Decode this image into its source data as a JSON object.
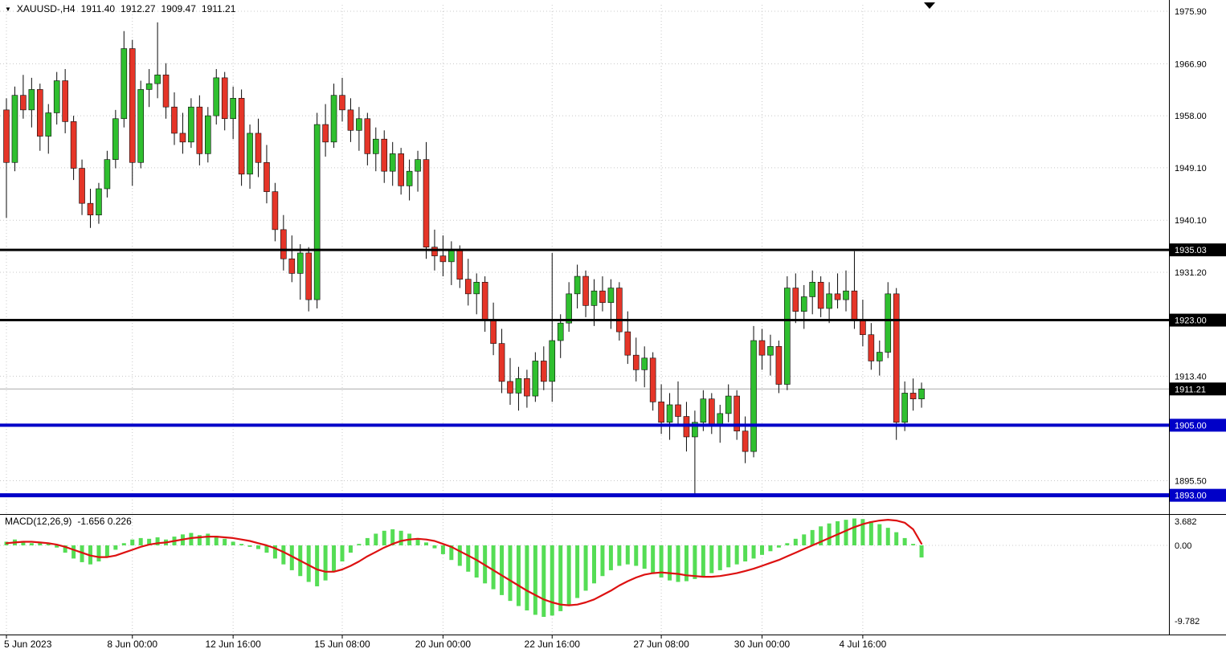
{
  "header": {
    "symbol_period": "XAUUSD-,H4",
    "open": "1911.40",
    "high": "1912.27",
    "low": "1909.47",
    "close": "1911.21"
  },
  "macd_header": {
    "title": "MACD(12,26,9)",
    "values": "-1.656 0.226"
  },
  "colors": {
    "bull": "#2fbf2f",
    "bear": "#e53528",
    "outline": "#0a0a0a",
    "macd_hist": "#55dd55",
    "macd_signal": "#dd1111",
    "grid": "#c8c8c8",
    "current_line": "#aaaaaa",
    "level_black": "#000000",
    "level_blue": "#0000C8",
    "badge_text": "#ffffff",
    "axis_text": "#000000"
  },
  "chart_data": {
    "type": "candlestick",
    "symbol": "XAUUSD-",
    "timeframe": "H4",
    "quote": {
      "open": 1911.4,
      "high": 1912.27,
      "low": 1909.47,
      "close": 1911.21
    },
    "price_axis": {
      "range_top": 1977.0,
      "range_bottom": 1890.2,
      "ticks": [
        {
          "label": "1975.90",
          "price": 1975.9
        },
        {
          "label": "1966.90",
          "price": 1966.9
        },
        {
          "label": "1958.00",
          "price": 1958.0
        },
        {
          "label": "1949.10",
          "price": 1949.1
        },
        {
          "label": "1940.10",
          "price": 1940.1
        },
        {
          "label": "1931.20",
          "price": 1931.2
        },
        {
          "label": "1913.40",
          "price": 1913.4
        },
        {
          "label": "1895.50",
          "price": 1895.5
        }
      ]
    },
    "time_axis": {
      "labels": [
        {
          "text": "5 Jun 2023",
          "i": 0
        },
        {
          "text": "8 Jun 00:00",
          "i": 15
        },
        {
          "text": "12 Jun 16:00",
          "i": 27
        },
        {
          "text": "15 Jun 08:00",
          "i": 40
        },
        {
          "text": "20 Jun 00:00",
          "i": 52
        },
        {
          "text": "22 Jun 16:00",
          "i": 65
        },
        {
          "text": "27 Jun 08:00",
          "i": 78
        },
        {
          "text": "30 Jun 00:00",
          "i": 90
        },
        {
          "text": "4 Jul 16:00",
          "i": 102
        }
      ]
    },
    "levels": [
      {
        "price": 1935.03,
        "label": "1935.03",
        "color": "#000000",
        "width": 3
      },
      {
        "price": 1923.0,
        "label": "1923.00",
        "color": "#000000",
        "width": 3
      },
      {
        "price": 1905.0,
        "label": "1905.00",
        "color": "#0000C8",
        "width": 4
      },
      {
        "price": 1893.0,
        "label": "1893.00",
        "color": "#0000C8",
        "width": 5
      }
    ],
    "current_price": {
      "price": 1911.21,
      "label": "1911.21"
    },
    "candles": [
      [
        1959,
        1961,
        1940.5,
        1950
      ],
      [
        1950,
        1963,
        1948.5,
        1961.5
      ],
      [
        1961.5,
        1965,
        1957.5,
        1959
      ],
      [
        1959,
        1964.5,
        1956,
        1962.5
      ],
      [
        1962.5,
        1963.5,
        1952,
        1954.5
      ],
      [
        1954.5,
        1960,
        1951.5,
        1958.5
      ],
      [
        1958.5,
        1965.5,
        1956.5,
        1964
      ],
      [
        1964,
        1966,
        1955,
        1957
      ],
      [
        1957,
        1958,
        1947,
        1949
      ],
      [
        1949,
        1950.5,
        1941,
        1943
      ],
      [
        1943,
        1945.5,
        1938.8,
        1941
      ],
      [
        1941,
        1946.5,
        1939.5,
        1945.5
      ],
      [
        1945.5,
        1952,
        1944,
        1950.5
      ],
      [
        1950.5,
        1959,
        1949,
        1957.5
      ],
      [
        1957.5,
        1972.5,
        1956,
        1969.5
      ],
      [
        1969.5,
        1971,
        1946,
        1950
      ],
      [
        1950,
        1964,
        1949,
        1962.5
      ],
      [
        1962.5,
        1966,
        1959.5,
        1963.5
      ],
      [
        1963.5,
        1974,
        1961,
        1965
      ],
      [
        1965,
        1967,
        1957.5,
        1959.5
      ],
      [
        1959.5,
        1962,
        1953,
        1955
      ],
      [
        1955,
        1958.5,
        1951.5,
        1953.5
      ],
      [
        1953.5,
        1961,
        1952.5,
        1959.5
      ],
      [
        1959.5,
        1961.5,
        1949.5,
        1951.5
      ],
      [
        1951.5,
        1959.5,
        1950,
        1958
      ],
      [
        1958,
        1966,
        1956.5,
        1964.5
      ],
      [
        1964.5,
        1965.5,
        1955.5,
        1957.5
      ],
      [
        1957.5,
        1963,
        1954,
        1961
      ],
      [
        1961,
        1962.5,
        1946,
        1948
      ],
      [
        1948,
        1956.5,
        1945.5,
        1955
      ],
      [
        1955,
        1957.5,
        1947.5,
        1950
      ],
      [
        1950,
        1953,
        1943,
        1945
      ],
      [
        1945,
        1946.5,
        1936.5,
        1938.5
      ],
      [
        1938.5,
        1941,
        1931.5,
        1933.5
      ],
      [
        1933.5,
        1937.5,
        1929.5,
        1931
      ],
      [
        1931,
        1936,
        1926.5,
        1934.5
      ],
      [
        1934.5,
        1935.5,
        1924.5,
        1926.5
      ],
      [
        1926.5,
        1958.5,
        1925,
        1956.5
      ],
      [
        1956.5,
        1960,
        1951,
        1953.5
      ],
      [
        1953.5,
        1963.5,
        1952.5,
        1961.5
      ],
      [
        1961.5,
        1964.5,
        1957,
        1959
      ],
      [
        1959,
        1961,
        1953.5,
        1955.5
      ],
      [
        1955.5,
        1959.5,
        1952,
        1957.5
      ],
      [
        1957.5,
        1958.5,
        1949.5,
        1951.5
      ],
      [
        1951.5,
        1956,
        1948.5,
        1954
      ],
      [
        1954,
        1955.5,
        1946.5,
        1948.5
      ],
      [
        1948.5,
        1953.5,
        1946,
        1951.5
      ],
      [
        1951.5,
        1952.5,
        1944.5,
        1946
      ],
      [
        1946,
        1950.5,
        1943.5,
        1948.5
      ],
      [
        1948.5,
        1952,
        1945,
        1950.5
      ],
      [
        1950.5,
        1953.5,
        1933.5,
        1935.5
      ],
      [
        1935.5,
        1938.5,
        1931.5,
        1934
      ],
      [
        1934,
        1937.5,
        1930.5,
        1933
      ],
      [
        1933,
        1936.5,
        1929,
        1935
      ],
      [
        1935,
        1935.8,
        1928.5,
        1930
      ],
      [
        1930,
        1933.5,
        1925.5,
        1927.5
      ],
      [
        1927.5,
        1931,
        1924,
        1929.5
      ],
      [
        1929.5,
        1930.5,
        1921,
        1923
      ],
      [
        1923,
        1926,
        1917,
        1919
      ],
      [
        1919,
        1921.5,
        1910.5,
        1912.5
      ],
      [
        1912.5,
        1916.5,
        1908.5,
        1910.5
      ],
      [
        1910.5,
        1915,
        1907.5,
        1913
      ],
      [
        1913,
        1914.5,
        1908,
        1910
      ],
      [
        1910,
        1917.5,
        1909,
        1916
      ],
      [
        1916,
        1918.5,
        1911,
        1912.5
      ],
      [
        1912.5,
        1934.5,
        1909,
        1919.5
      ],
      [
        1919.5,
        1924,
        1916.5,
        1922.5
      ],
      [
        1922.5,
        1929.5,
        1921,
        1927.5
      ],
      [
        1927.5,
        1932.5,
        1925,
        1930.5
      ],
      [
        1930.5,
        1931.5,
        1923.5,
        1925.5
      ],
      [
        1925.5,
        1930,
        1922,
        1928
      ],
      [
        1928,
        1930.5,
        1924.5,
        1926
      ],
      [
        1926,
        1930,
        1921.5,
        1928.5
      ],
      [
        1928.5,
        1929.5,
        1919.5,
        1921
      ],
      [
        1921,
        1924.5,
        1915.5,
        1917
      ],
      [
        1917,
        1920,
        1912.5,
        1914.5
      ],
      [
        1914.5,
        1918.5,
        1911.5,
        1916.5
      ],
      [
        1916.5,
        1917.5,
        1907.5,
        1909
      ],
      [
        1909,
        1912,
        1903.5,
        1905.5
      ],
      [
        1905.5,
        1910.5,
        1902.5,
        1908.5
      ],
      [
        1908.5,
        1912.5,
        1905,
        1906.5
      ],
      [
        1906.5,
        1909,
        1900.5,
        1903
      ],
      [
        1903,
        1907.5,
        1893.2,
        1905.5
      ],
      [
        1905.5,
        1911,
        1904,
        1909.5
      ],
      [
        1909.5,
        1910.5,
        1903.5,
        1905
      ],
      [
        1905,
        1908.5,
        1902,
        1907
      ],
      [
        1907,
        1912,
        1905.5,
        1910
      ],
      [
        1910,
        1911,
        1902.5,
        1904
      ],
      [
        1904,
        1906.5,
        1898.5,
        1900.5
      ],
      [
        1900.5,
        1922,
        1899.5,
        1919.5
      ],
      [
        1919.5,
        1921.5,
        1914.5,
        1917
      ],
      [
        1917,
        1920.5,
        1913.5,
        1918.5
      ],
      [
        1918.5,
        1919.5,
        1910.5,
        1912
      ],
      [
        1912,
        1930.5,
        1911,
        1928.5
      ],
      [
        1928.5,
        1931,
        1922.5,
        1924.5
      ],
      [
        1924.5,
        1929,
        1921.5,
        1927
      ],
      [
        1927,
        1931.5,
        1924,
        1929.5
      ],
      [
        1929.5,
        1930.5,
        1923.5,
        1925
      ],
      [
        1925,
        1929.5,
        1922.5,
        1927.5
      ],
      [
        1927.5,
        1931,
        1925,
        1926.5
      ],
      [
        1926.5,
        1931.5,
        1924.5,
        1928
      ],
      [
        1928,
        1934.8,
        1921.5,
        1923
      ],
      [
        1923,
        1926.5,
        1918.5,
        1920.5
      ],
      [
        1920.5,
        1922.5,
        1914.5,
        1916
      ],
      [
        1916,
        1919.5,
        1913.5,
        1917.5
      ],
      [
        1917.5,
        1929.5,
        1916.5,
        1927.5
      ],
      [
        1927.5,
        1928.5,
        1902.5,
        1905.5
      ],
      [
        1905.5,
        1912.5,
        1904,
        1910.5
      ],
      [
        1910.5,
        1913,
        1907.5,
        1909.5
      ],
      [
        1909.5,
        1912.3,
        1908,
        1911.21
      ]
    ],
    "macd": {
      "title": "MACD(12,26,9)",
      "values_text": "-1.656 0.226",
      "macd_value": -1.656,
      "signal_value": 0.226,
      "axis": {
        "max_label": "3.682",
        "zero_label": "0.00",
        "min_label": "-9.782",
        "max": 3.682,
        "zero": 0.0,
        "min": -9.782
      },
      "hist": [
        0.5,
        0.8,
        0.6,
        0.3,
        0.5,
        0.2,
        -0.3,
        -1.0,
        -1.8,
        -2.3,
        -2.6,
        -2.2,
        -1.5,
        -0.6,
        0.3,
        0.8,
        1.0,
        0.9,
        1.1,
        0.8,
        1.2,
        1.5,
        1.7,
        1.4,
        1.6,
        1.3,
        0.9,
        0.5,
        0.2,
        -0.2,
        -0.5,
        -1.0,
        -1.8,
        -2.6,
        -3.4,
        -4.2,
        -5.0,
        -5.6,
        -4.8,
        -3.6,
        -2.2,
        -1.0,
        0.2,
        1.0,
        1.6,
        2.0,
        2.2,
        2.0,
        1.6,
        1.0,
        0.4,
        -0.4,
        -1.2,
        -2.0,
        -2.8,
        -3.6,
        -4.4,
        -5.2,
        -6.0,
        -6.8,
        -7.6,
        -8.3,
        -8.9,
        -9.5,
        -9.782,
        -9.6,
        -9.0,
        -8.2,
        -7.2,
        -6.2,
        -5.2,
        -4.2,
        -3.4,
        -2.8,
        -2.6,
        -2.8,
        -3.2,
        -3.8,
        -4.4,
        -4.8,
        -5.0,
        -4.9,
        -4.6,
        -4.2,
        -3.8,
        -3.4,
        -3.0,
        -2.6,
        -2.2,
        -1.8,
        -1.3,
        -0.8,
        -0.3,
        0.3,
        0.9,
        1.5,
        2.1,
        2.6,
        3.0,
        3.3,
        3.5,
        3.682,
        3.6,
        3.3,
        2.9,
        2.4,
        1.8,
        1.0,
        0.2,
        -1.656
      ],
      "signal": [
        0.3,
        0.4,
        0.5,
        0.5,
        0.4,
        0.3,
        0.1,
        -0.2,
        -0.6,
        -1.0,
        -1.4,
        -1.6,
        -1.6,
        -1.4,
        -1.0,
        -0.6,
        -0.2,
        0.1,
        0.3,
        0.4,
        0.6,
        0.8,
        1.0,
        1.1,
        1.2,
        1.2,
        1.1,
        1.0,
        0.8,
        0.6,
        0.3,
        0.0,
        -0.4,
        -0.9,
        -1.5,
        -2.1,
        -2.7,
        -3.3,
        -3.6,
        -3.6,
        -3.3,
        -2.8,
        -2.2,
        -1.5,
        -0.9,
        -0.3,
        0.2,
        0.6,
        0.8,
        0.9,
        0.8,
        0.6,
        0.2,
        -0.2,
        -0.8,
        -1.4,
        -2.0,
        -2.7,
        -3.4,
        -4.1,
        -4.8,
        -5.5,
        -6.2,
        -6.8,
        -7.4,
        -7.8,
        -8.1,
        -8.2,
        -8.1,
        -7.8,
        -7.4,
        -6.8,
        -6.2,
        -5.5,
        -4.9,
        -4.4,
        -4.0,
        -3.8,
        -3.7,
        -3.8,
        -3.9,
        -4.1,
        -4.2,
        -4.3,
        -4.3,
        -4.2,
        -4.0,
        -3.8,
        -3.5,
        -3.2,
        -2.8,
        -2.4,
        -2.0,
        -1.5,
        -1.0,
        -0.5,
        0.0,
        0.5,
        1.0,
        1.5,
        2.0,
        2.5,
        2.9,
        3.2,
        3.4,
        3.5,
        3.4,
        3.1,
        2.2,
        0.226
      ]
    }
  }
}
